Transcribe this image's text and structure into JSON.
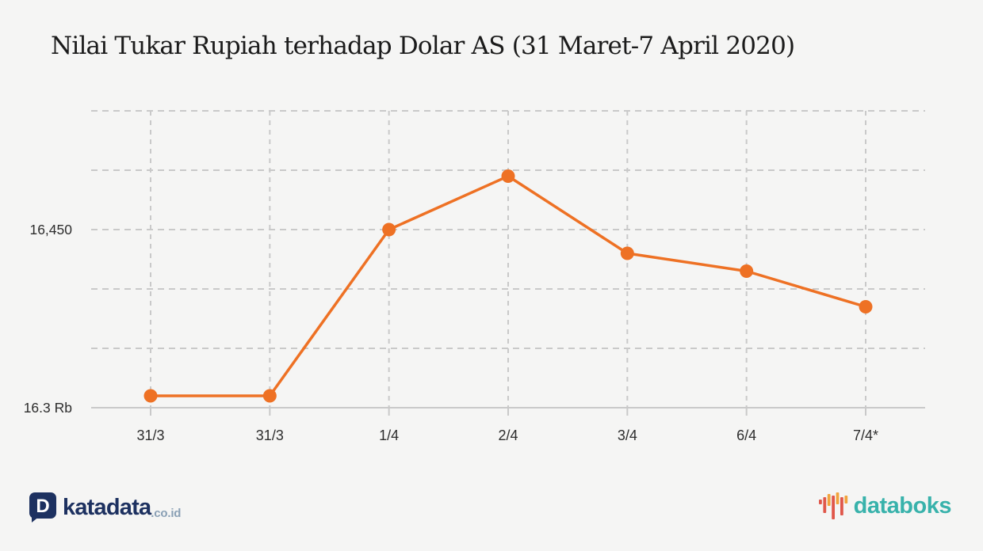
{
  "title": "Nilai Tukar Rupiah terhadap Dolar AS (31 Maret-7 April 2020)",
  "chart_data": {
    "type": "line",
    "categories": [
      "31/3",
      "31/3",
      "1/4",
      "2/4",
      "3/4",
      "6/4",
      "7/4*"
    ],
    "values": [
      16310,
      16310,
      16450,
      16495,
      16430,
      16415,
      16385
    ],
    "title": "Nilai Tukar Rupiah terhadap Dolar AS (31 Maret-7 April 2020)",
    "xlabel": "",
    "ylabel": "",
    "ylim": [
      16300,
      16550
    ],
    "grid": "dashed",
    "grid_step": 50,
    "y_tick_labels": [
      {
        "value": 16450,
        "label": "16,450"
      },
      {
        "value": 16300,
        "label": "16.3 Rb"
      }
    ],
    "legend": "none",
    "line_color": "#ee7124",
    "marker": "circle"
  },
  "colors": {
    "background": "#f5f5f4",
    "title_text": "#1b1b1b",
    "axis_text": "#2d2d2d",
    "grid": "#c9c9c9",
    "line": "#ee7124",
    "katadata_navy": "#1d3160",
    "katadata_gray": "#8aa0b5",
    "databoks_teal": "#38b2ab",
    "databoks_orange": "#f2a33c",
    "databoks_red": "#e0574a"
  },
  "footer": {
    "katadata": {
      "icon_letter": "D",
      "brand": "katadata",
      "suffix": ".co.id"
    },
    "databoks": {
      "brand": "databoks"
    }
  }
}
